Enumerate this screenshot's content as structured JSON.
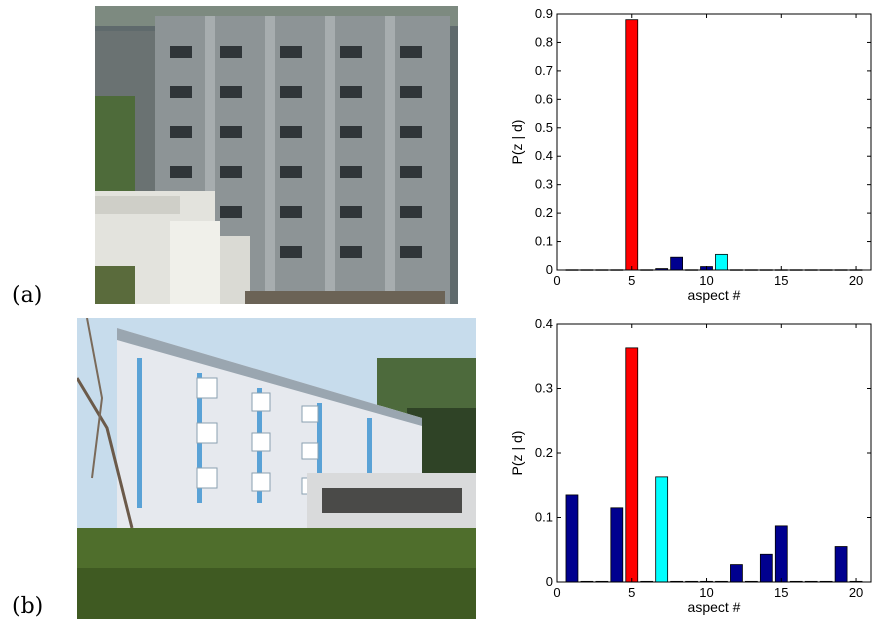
{
  "panels": [
    {
      "label": "(a)"
    },
    {
      "label": "(b)"
    }
  ],
  "colors": {
    "default_bar": "#00008f",
    "highlight_primary": "#ff0000",
    "highlight_secondary": "#00ffff",
    "axis": "#000000"
  },
  "chart_data": [
    {
      "type": "bar",
      "panel": "(a)",
      "xlabel": "aspect #",
      "ylabel": "P(z | d)",
      "xlim": [
        0,
        21
      ],
      "ylim": [
        0,
        0.9
      ],
      "xticks": [
        0,
        5,
        10,
        15,
        20
      ],
      "yticks": [
        0,
        0.1,
        0.2,
        0.3,
        0.4,
        0.5,
        0.6,
        0.7,
        0.8,
        0.9
      ],
      "grid": false,
      "x": [
        1,
        2,
        3,
        4,
        5,
        6,
        7,
        8,
        9,
        10,
        11,
        12,
        13,
        14,
        15,
        16,
        17,
        18,
        19,
        20
      ],
      "values": [
        0.001,
        0.001,
        0.001,
        0.001,
        0.88,
        0.001,
        0.005,
        0.045,
        0.001,
        0.012,
        0.055,
        0.001,
        0.001,
        0.001,
        0.001,
        0.001,
        0.001,
        0.001,
        0.001,
        0.001
      ],
      "bar_colors": {
        "5": "#ff0000",
        "11": "#00ffff"
      }
    },
    {
      "type": "bar",
      "panel": "(b)",
      "xlabel": "aspect #",
      "ylabel": "P(z | d)",
      "xlim": [
        0,
        21
      ],
      "ylim": [
        0,
        0.4
      ],
      "xticks": [
        0,
        5,
        10,
        15,
        20
      ],
      "yticks": [
        0,
        0.1,
        0.2,
        0.3,
        0.4
      ],
      "grid": false,
      "x": [
        1,
        2,
        3,
        4,
        5,
        6,
        7,
        8,
        9,
        10,
        11,
        12,
        13,
        14,
        15,
        16,
        17,
        18,
        19,
        20
      ],
      "values": [
        0.135,
        0.001,
        0.001,
        0.115,
        0.363,
        0.001,
        0.163,
        0.001,
        0.001,
        0.001,
        0.001,
        0.027,
        0.001,
        0.043,
        0.087,
        0.001,
        0.001,
        0.001,
        0.055,
        0.001
      ],
      "bar_colors": {
        "5": "#ff0000",
        "7": "#00ffff"
      }
    }
  ]
}
